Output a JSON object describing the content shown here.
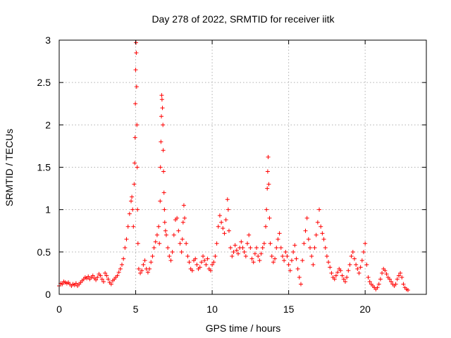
{
  "chart_data": {
    "type": "scatter",
    "title": "Day 278 of 2022, SRMTID for receiver iitk",
    "xlabel": "GPS time / hours",
    "ylabel": "SRMTID / TECUs",
    "xlim": [
      0,
      24
    ],
    "ylim": [
      0,
      3
    ],
    "xticks": [
      0,
      5,
      10,
      15,
      20
    ],
    "xtick_labels": [
      "0",
      "5",
      "10",
      "15",
      "20"
    ],
    "yticks": [
      0,
      0.5,
      1,
      1.5,
      2,
      2.5,
      3
    ],
    "ytick_labels": [
      "0",
      "0.5",
      "1",
      "1.5",
      "2",
      "2.5",
      "3"
    ],
    "grid": true,
    "marker": "plus",
    "marker_color": "#ff0000",
    "series": [
      {
        "name": "iitk",
        "points": [
          [
            0.0,
            0.1
          ],
          [
            0.1,
            0.13
          ],
          [
            0.2,
            0.12
          ],
          [
            0.3,
            0.15
          ],
          [
            0.4,
            0.14
          ],
          [
            0.5,
            0.13
          ],
          [
            0.6,
            0.14
          ],
          [
            0.7,
            0.12
          ],
          [
            0.8,
            0.1
          ],
          [
            0.9,
            0.12
          ],
          [
            1.0,
            0.11
          ],
          [
            1.1,
            0.13
          ],
          [
            1.2,
            0.1
          ],
          [
            1.3,
            0.12
          ],
          [
            1.4,
            0.14
          ],
          [
            1.5,
            0.16
          ],
          [
            1.6,
            0.18
          ],
          [
            1.7,
            0.2
          ],
          [
            1.8,
            0.19
          ],
          [
            1.9,
            0.21
          ],
          [
            2.0,
            0.18
          ],
          [
            2.1,
            0.2
          ],
          [
            2.2,
            0.22
          ],
          [
            2.3,
            0.19
          ],
          [
            2.4,
            0.17
          ],
          [
            2.5,
            0.2
          ],
          [
            2.6,
            0.24
          ],
          [
            2.7,
            0.22
          ],
          [
            2.8,
            0.18
          ],
          [
            2.9,
            0.15
          ],
          [
            3.0,
            0.25
          ],
          [
            3.1,
            0.22
          ],
          [
            3.2,
            0.18
          ],
          [
            3.3,
            0.14
          ],
          [
            3.4,
            0.12
          ],
          [
            3.5,
            0.16
          ],
          [
            3.6,
            0.18
          ],
          [
            3.7,
            0.2
          ],
          [
            3.8,
            0.22
          ],
          [
            3.9,
            0.26
          ],
          [
            4.0,
            0.3
          ],
          [
            4.1,
            0.35
          ],
          [
            4.2,
            0.42
          ],
          [
            4.3,
            0.55
          ],
          [
            4.4,
            0.65
          ],
          [
            4.5,
            0.8
          ],
          [
            4.6,
            0.95
          ],
          [
            4.7,
            1.1
          ],
          [
            4.75,
            1.15
          ],
          [
            4.8,
            1.0
          ],
          [
            4.85,
            0.8
          ],
          [
            4.9,
            1.3
          ],
          [
            4.93,
            1.55
          ],
          [
            4.96,
            1.85
          ],
          [
            4.98,
            2.25
          ],
          [
            5.0,
            2.65
          ],
          [
            5.02,
            2.97
          ],
          [
            5.04,
            2.85
          ],
          [
            5.06,
            2.45
          ],
          [
            5.08,
            2.0
          ],
          [
            5.1,
            1.5
          ],
          [
            5.12,
            1.0
          ],
          [
            5.15,
            0.6
          ],
          [
            5.2,
            0.3
          ],
          [
            5.3,
            0.25
          ],
          [
            5.4,
            0.28
          ],
          [
            5.5,
            0.35
          ],
          [
            5.6,
            0.4
          ],
          [
            5.7,
            0.3
          ],
          [
            5.8,
            0.26
          ],
          [
            5.9,
            0.3
          ],
          [
            6.0,
            0.38
          ],
          [
            6.1,
            0.45
          ],
          [
            6.2,
            0.55
          ],
          [
            6.3,
            0.62
          ],
          [
            6.4,
            0.7
          ],
          [
            6.5,
            0.8
          ],
          [
            6.55,
            0.6
          ],
          [
            6.6,
            1.1
          ],
          [
            6.62,
            1.5
          ],
          [
            6.65,
            1.8
          ],
          [
            6.68,
            2.1
          ],
          [
            6.7,
            2.35
          ],
          [
            6.72,
            2.3
          ],
          [
            6.75,
            2.2
          ],
          [
            6.78,
            2.0
          ],
          [
            6.8,
            1.7
          ],
          [
            6.82,
            1.45
          ],
          [
            6.85,
            1.2
          ],
          [
            6.88,
            1.0
          ],
          [
            6.9,
            0.85
          ],
          [
            6.95,
            0.75
          ],
          [
            7.0,
            0.7
          ],
          [
            7.1,
            0.55
          ],
          [
            7.2,
            0.45
          ],
          [
            7.3,
            0.4
          ],
          [
            7.4,
            0.5
          ],
          [
            7.5,
            0.7
          ],
          [
            7.6,
            0.88
          ],
          [
            7.7,
            0.9
          ],
          [
            7.8,
            0.75
          ],
          [
            7.9,
            0.6
          ],
          [
            8.0,
            0.5
          ],
          [
            8.05,
            0.65
          ],
          [
            8.1,
            0.85
          ],
          [
            8.15,
            1.05
          ],
          [
            8.2,
            0.9
          ],
          [
            8.3,
            0.6
          ],
          [
            8.4,
            0.45
          ],
          [
            8.5,
            0.38
          ],
          [
            8.6,
            0.3
          ],
          [
            8.7,
            0.28
          ],
          [
            8.8,
            0.4
          ],
          [
            8.9,
            0.42
          ],
          [
            9.0,
            0.35
          ],
          [
            9.1,
            0.3
          ],
          [
            9.2,
            0.32
          ],
          [
            9.3,
            0.38
          ],
          [
            9.4,
            0.45
          ],
          [
            9.5,
            0.4
          ],
          [
            9.6,
            0.35
          ],
          [
            9.7,
            0.42
          ],
          [
            9.8,
            0.3
          ],
          [
            9.9,
            0.28
          ],
          [
            10.0,
            0.35
          ],
          [
            10.1,
            0.38
          ],
          [
            10.2,
            0.45
          ],
          [
            10.3,
            0.6
          ],
          [
            10.4,
            0.8
          ],
          [
            10.5,
            0.93
          ],
          [
            10.6,
            0.85
          ],
          [
            10.7,
            0.78
          ],
          [
            10.8,
            0.72
          ],
          [
            10.9,
            0.88
          ],
          [
            11.0,
            1.12
          ],
          [
            11.05,
            1.0
          ],
          [
            11.1,
            0.75
          ],
          [
            11.2,
            0.55
          ],
          [
            11.3,
            0.45
          ],
          [
            11.4,
            0.5
          ],
          [
            11.5,
            0.58
          ],
          [
            11.6,
            0.52
          ],
          [
            11.7,
            0.48
          ],
          [
            11.8,
            0.55
          ],
          [
            11.9,
            0.62
          ],
          [
            12.0,
            0.55
          ],
          [
            12.1,
            0.5
          ],
          [
            12.2,
            0.45
          ],
          [
            12.3,
            0.6
          ],
          [
            12.4,
            0.7
          ],
          [
            12.5,
            0.55
          ],
          [
            12.6,
            0.42
          ],
          [
            12.7,
            0.38
          ],
          [
            12.8,
            0.48
          ],
          [
            12.9,
            0.55
          ],
          [
            13.0,
            0.45
          ],
          [
            13.1,
            0.4
          ],
          [
            13.2,
            0.48
          ],
          [
            13.3,
            0.55
          ],
          [
            13.4,
            0.6
          ],
          [
            13.5,
            0.8
          ],
          [
            13.55,
            1.0
          ],
          [
            13.6,
            1.25
          ],
          [
            13.63,
            1.45
          ],
          [
            13.66,
            1.62
          ],
          [
            13.7,
            1.3
          ],
          [
            13.75,
            0.9
          ],
          [
            13.8,
            0.6
          ],
          [
            13.9,
            0.45
          ],
          [
            14.0,
            0.38
          ],
          [
            14.1,
            0.42
          ],
          [
            14.2,
            0.55
          ],
          [
            14.3,
            0.65
          ],
          [
            14.4,
            0.72
          ],
          [
            14.5,
            0.55
          ],
          [
            14.6,
            0.45
          ],
          [
            14.7,
            0.4
          ],
          [
            14.8,
            0.5
          ],
          [
            14.9,
            0.45
          ],
          [
            15.0,
            0.35
          ],
          [
            15.1,
            0.28
          ],
          [
            15.2,
            0.4
          ],
          [
            15.3,
            0.5
          ],
          [
            15.4,
            0.58
          ],
          [
            15.5,
            0.42
          ],
          [
            15.6,
            0.3
          ],
          [
            15.7,
            0.2
          ],
          [
            15.8,
            0.12
          ],
          [
            15.9,
            0.4
          ],
          [
            16.0,
            0.6
          ],
          [
            16.1,
            0.75
          ],
          [
            16.2,
            0.9
          ],
          [
            16.3,
            0.65
          ],
          [
            16.4,
            0.55
          ],
          [
            16.5,
            0.45
          ],
          [
            16.6,
            0.35
          ],
          [
            16.7,
            0.55
          ],
          [
            16.8,
            0.7
          ],
          [
            16.9,
            0.85
          ],
          [
            17.0,
            1.0
          ],
          [
            17.1,
            0.8
          ],
          [
            17.2,
            0.72
          ],
          [
            17.3,
            0.65
          ],
          [
            17.4,
            0.55
          ],
          [
            17.5,
            0.45
          ],
          [
            17.6,
            0.38
          ],
          [
            17.7,
            0.32
          ],
          [
            17.8,
            0.25
          ],
          [
            17.9,
            0.2
          ],
          [
            18.0,
            0.18
          ],
          [
            18.1,
            0.22
          ],
          [
            18.2,
            0.26
          ],
          [
            18.3,
            0.3
          ],
          [
            18.4,
            0.28
          ],
          [
            18.5,
            0.22
          ],
          [
            18.6,
            0.18
          ],
          [
            18.7,
            0.15
          ],
          [
            18.8,
            0.2
          ],
          [
            18.9,
            0.28
          ],
          [
            19.0,
            0.35
          ],
          [
            19.1,
            0.45
          ],
          [
            19.2,
            0.5
          ],
          [
            19.3,
            0.42
          ],
          [
            19.4,
            0.35
          ],
          [
            19.5,
            0.3
          ],
          [
            19.6,
            0.25
          ],
          [
            19.7,
            0.32
          ],
          [
            19.8,
            0.4
          ],
          [
            19.9,
            0.5
          ],
          [
            20.0,
            0.6
          ],
          [
            20.1,
            0.35
          ],
          [
            20.2,
            0.2
          ],
          [
            20.3,
            0.15
          ],
          [
            20.4,
            0.12
          ],
          [
            20.5,
            0.1
          ],
          [
            20.6,
            0.08
          ],
          [
            20.7,
            0.06
          ],
          [
            20.8,
            0.08
          ],
          [
            20.9,
            0.12
          ],
          [
            21.0,
            0.18
          ],
          [
            21.1,
            0.25
          ],
          [
            21.2,
            0.3
          ],
          [
            21.3,
            0.28
          ],
          [
            21.4,
            0.24
          ],
          [
            21.5,
            0.2
          ],
          [
            21.6,
            0.18
          ],
          [
            21.7,
            0.15
          ],
          [
            21.8,
            0.12
          ],
          [
            21.9,
            0.1
          ],
          [
            22.0,
            0.12
          ],
          [
            22.1,
            0.18
          ],
          [
            22.2,
            0.22
          ],
          [
            22.3,
            0.25
          ],
          [
            22.4,
            0.2
          ],
          [
            22.5,
            0.12
          ],
          [
            22.6,
            0.08
          ],
          [
            22.7,
            0.06
          ],
          [
            22.8,
            0.05
          ]
        ]
      }
    ]
  }
}
